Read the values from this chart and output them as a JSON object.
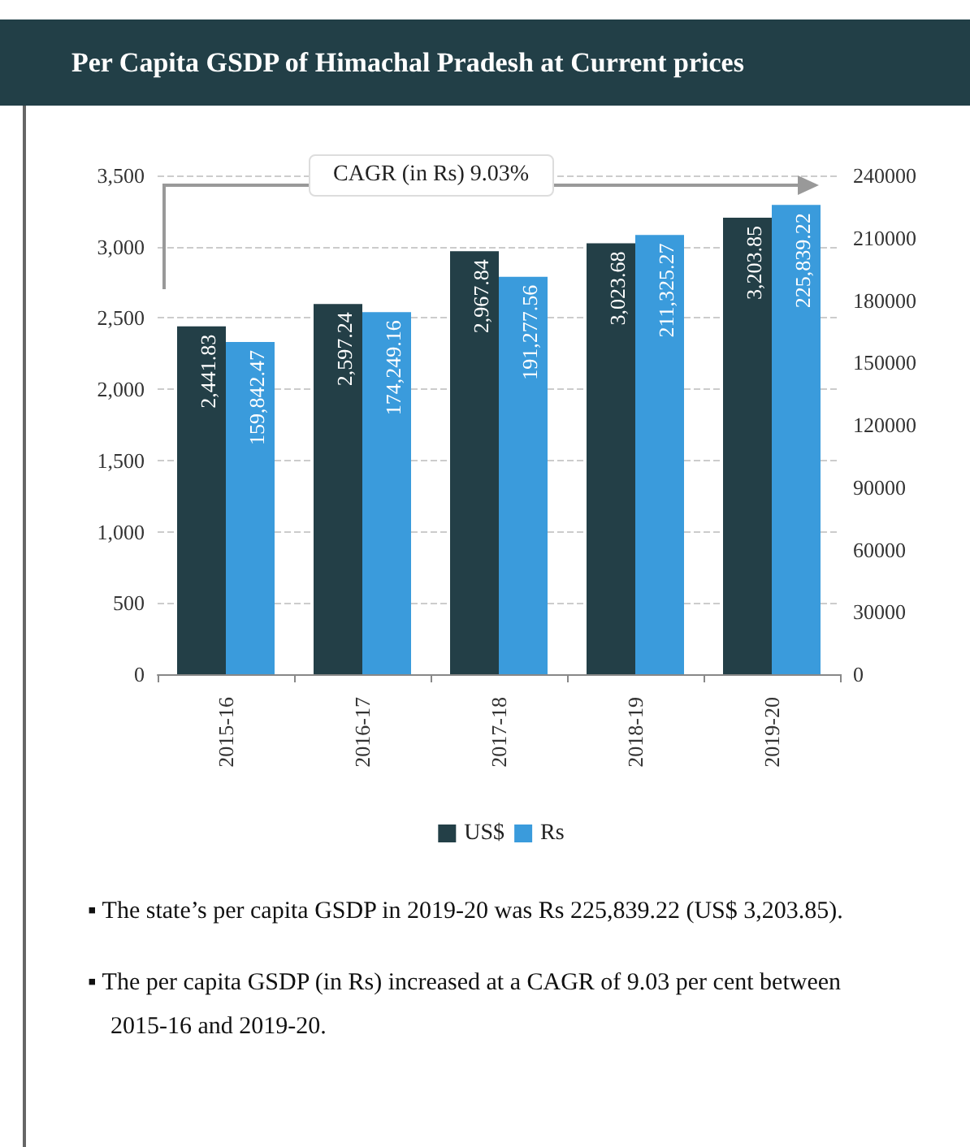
{
  "chart_data": {
    "type": "bar",
    "title": "Per Capita GSDP of Himachal Pradesh at Current prices",
    "categories": [
      "2015-16",
      "2016-17",
      "2017-18",
      "2018-19",
      "2019-20"
    ],
    "series": [
      {
        "name": "US$",
        "color": "#233f47",
        "values": [
          2441.83,
          2597.24,
          2967.84,
          3023.68,
          3203.85
        ],
        "value_labels": [
          "2,441.83",
          "2,597.24",
          "2,967.84",
          "3,023.68",
          "3,203.85"
        ]
      },
      {
        "name": "Rs",
        "color": "#3a9bdc",
        "axis": "y2",
        "values": [
          159842.47,
          174249.16,
          191277.56,
          211325.27,
          225839.22
        ],
        "value_labels": [
          "159,842.47",
          "174,249.16",
          "191,277.56",
          "211,325.27",
          "225,839.22"
        ]
      }
    ],
    "ylim": [
      0,
      3500
    ],
    "yticks": [
      0,
      500,
      {
        "value": 1000,
        "label": "1,000"
      },
      {
        "value": 1500,
        "label": "1,500"
      },
      {
        "value": 2000,
        "label": "2,000"
      },
      {
        "value": 2500,
        "label": "2,500"
      },
      {
        "value": 3000,
        "label": "3,000"
      },
      {
        "value": 3500,
        "label": "3,500"
      }
    ],
    "y2lim": [
      0,
      240000
    ],
    "y2ticks": [
      0,
      30000,
      60000,
      90000,
      120000,
      150000,
      180000,
      210000,
      240000
    ],
    "grid": "y",
    "legend": "bottom",
    "annotations": [
      "CAGR (in Rs) 9.03%",
      "▪ The state’s per capita GSDP in 2019-20 was Rs 225,839.22 (US$ 3,203.85).",
      "▪ The per capita GSDP (in Rs) increased at a CAGR of 9.03 per cent between 2015-16 and 2019-20."
    ]
  }
}
